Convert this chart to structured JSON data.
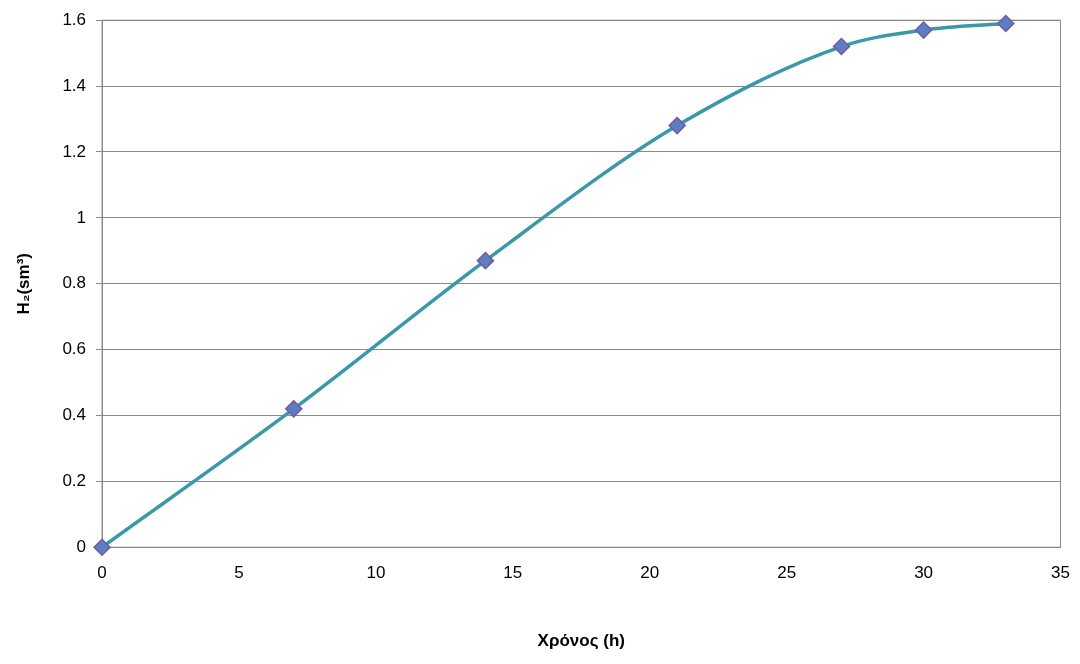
{
  "chart_data": {
    "type": "line",
    "xlabel": "Χρόνος (h)",
    "ylabel": "H₂(sm³)",
    "x": [
      0,
      7,
      14,
      21,
      27,
      30,
      33
    ],
    "series": [
      {
        "color": "#3a98a8",
        "values": [
          0,
          0.42,
          0.87,
          1.28,
          1.52,
          1.57,
          1.59
        ]
      }
    ],
    "xlim": [
      0,
      35
    ],
    "xticks": [
      0,
      5,
      10,
      15,
      20,
      25,
      30,
      35
    ],
    "ylim": [
      0,
      1.6
    ],
    "yticks": [
      0,
      0.2,
      0.4,
      0.6,
      0.8,
      1,
      1.2,
      1.4,
      1.6
    ],
    "grid": "y",
    "legend": false,
    "marker": "diamond",
    "line_style": "solid"
  }
}
